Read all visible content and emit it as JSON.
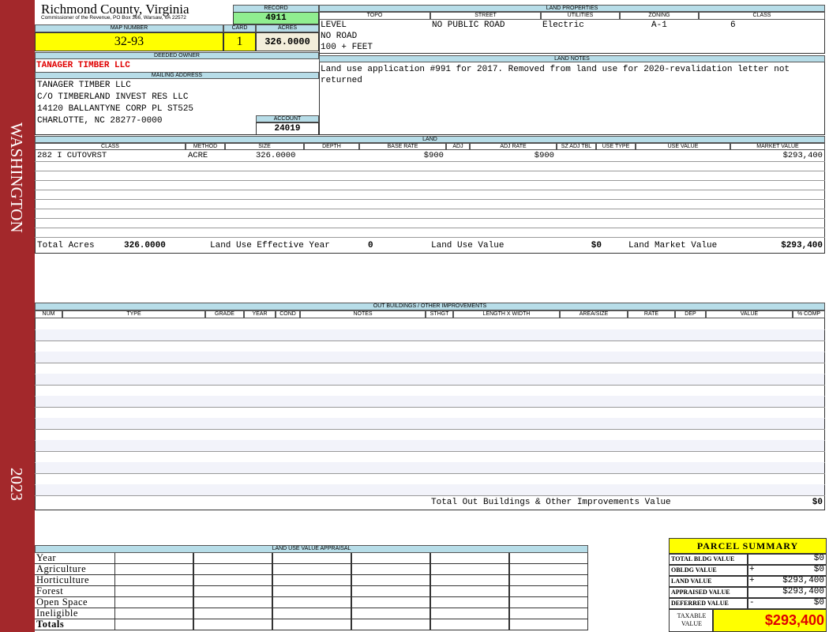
{
  "sidebar": {
    "district": "WASHINGTON",
    "year": "2023"
  },
  "header": {
    "title": "Richmond County, Virginia",
    "subtitle": "Commissioner of the Revenue, PO Box 366, Warsaw, VA 22572",
    "record_label": "RECORD",
    "record": "4911",
    "map_number_label": "MAP NUMBER",
    "map_number": "32-93",
    "card_label": "CARD",
    "card": "1",
    "acres_label": "ACRES",
    "acres": "326.0000"
  },
  "owner": {
    "deeded_owner_label": "DEEDED OWNER",
    "deeded_owner": "TANAGER TIMBER LLC",
    "mailing_address_label": "MAILING ADDRESS",
    "mailing_address": [
      "TANAGER TIMBER LLC",
      "C/O TIMBERLAND INVEST RES LLC",
      "14120 BALLANTYNE CORP PL ST525",
      "CHARLOTTE, NC 28277-0000"
    ],
    "account_label": "ACCOUNT",
    "account": "24019"
  },
  "land_properties": {
    "title": "LAND PROPERTIES",
    "headers": [
      "TOPO",
      "STREET",
      "UTILITIES",
      "ZONING",
      "CLASS"
    ],
    "values": [
      [
        "LEVEL",
        "NO ROAD",
        "100 + FEET"
      ],
      [
        "NO PUBLIC ROAD"
      ],
      [
        "Electric"
      ],
      [
        "A-1"
      ],
      [
        "6"
      ]
    ]
  },
  "land_notes": {
    "title": "LAND NOTES",
    "text": "Land use application #991 for 2017. Removed from land use for 2020-revalidation letter not returned"
  },
  "land": {
    "title": "LAND",
    "headers": [
      "CLASS",
      "METHOD",
      "SIZE",
      "DEPTH",
      "BASE RATE",
      "ADJ",
      "ADJ RATE",
      "SZ ADJ TBL",
      "USE TYPE",
      "USE VALUE",
      "MARKET VALUE"
    ],
    "rows": [
      {
        "class": "282 I CUTOVRST",
        "method": "ACRE",
        "size": "326.0000",
        "base_rate": "$900",
        "adj_rate": "$900",
        "market_value": "$293,400"
      }
    ],
    "totals": {
      "total_acres_label": "Total Acres",
      "total_acres": "326.0000",
      "effective_year_label": "Land Use Effective Year",
      "effective_year": "0",
      "use_value_label": "Land Use Value",
      "use_value": "$0",
      "market_value_label": "Land Market Value",
      "market_value": "$293,400"
    }
  },
  "out_buildings": {
    "title": "OUT BUILDINGS / OTHER IMPROVEMENTS",
    "headers": [
      "NUM",
      "TYPE",
      "GRADE",
      "YEAR",
      "COND",
      "NOTES",
      "STHGT",
      "LENGTH X WIDTH",
      "AREA/SIZE",
      "RATE",
      "DEP",
      "VALUE",
      "% COMP"
    ],
    "total_label": "Total Out Buildings & Other Improvements Value",
    "total": "$0"
  },
  "land_use_appraisal": {
    "title": "LAND USE VALUE APPRAISAL",
    "rows": [
      "Year",
      "Agriculture",
      "Horticulture",
      "Forest",
      "Open Space",
      "Ineligible",
      "Totals"
    ]
  },
  "parcel_summary": {
    "title": "PARCEL SUMMARY",
    "rows": [
      {
        "label": "TOTAL BLDG VALUE",
        "value": "$0"
      },
      {
        "label": "OBLDG VALUE",
        "sign": "+",
        "value": "$0"
      },
      {
        "label": "LAND VALUE",
        "sign": "+",
        "value": "$293,400"
      },
      {
        "label": "APPRAISED VALUE",
        "value": "$293,400"
      },
      {
        "label": "DEFERRED VALUE",
        "sign": "-",
        "value": "$0"
      }
    ],
    "taxable_label": "TAXABLE VALUE",
    "taxable": "$293,400"
  }
}
